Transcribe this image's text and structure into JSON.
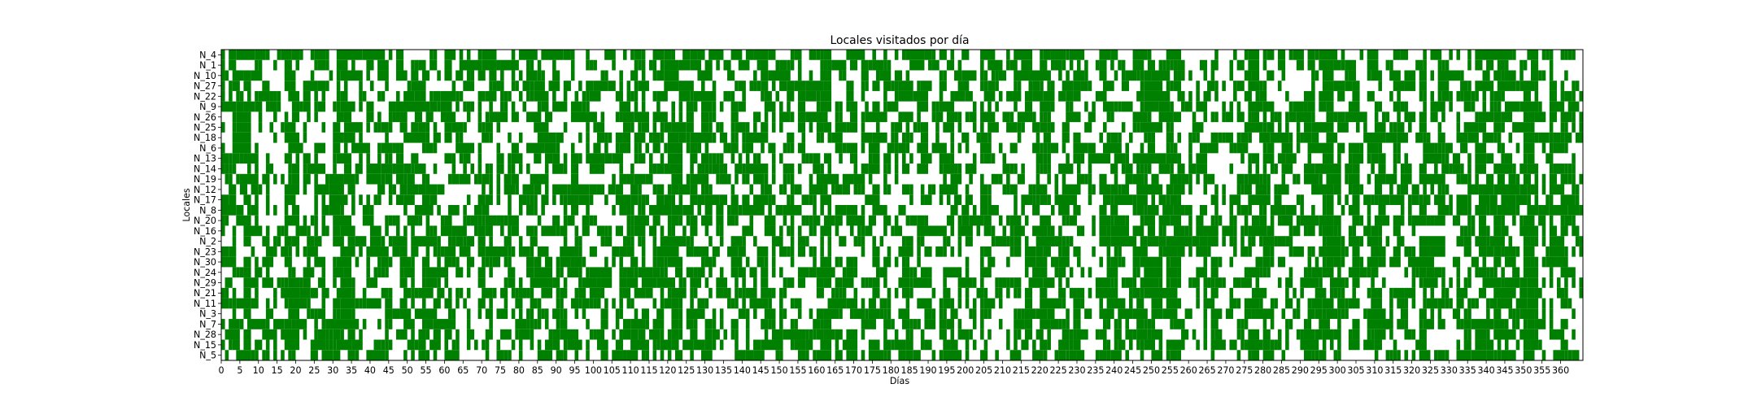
{
  "chart_data": {
    "type": "heatmap",
    "title": "Locales visitados por día",
    "xlabel": "Días",
    "ylabel": "Locales",
    "xlim": [
      0,
      366
    ],
    "x_ticks": [
      0,
      5,
      10,
      15,
      20,
      25,
      30,
      35,
      40,
      45,
      50,
      55,
      60,
      65,
      70,
      75,
      80,
      85,
      90,
      95,
      100,
      105,
      110,
      115,
      120,
      125,
      130,
      135,
      140,
      145,
      150,
      155,
      160,
      165,
      170,
      175,
      180,
      185,
      190,
      195,
      200,
      205,
      210,
      215,
      220,
      225,
      230,
      235,
      240,
      245,
      250,
      255,
      260,
      265,
      270,
      275,
      280,
      285,
      290,
      295,
      300,
      305,
      310,
      315,
      320,
      325,
      330,
      335,
      340,
      345,
      350,
      355,
      360
    ],
    "rows": [
      "N_4",
      "N_1",
      "N_10",
      "N_27",
      "N_22",
      "N_9",
      "N_26",
      "N_25",
      "N_18",
      "N_6",
      "N_13",
      "N_14",
      "N_19",
      "N_12",
      "N_17",
      "N_8",
      "N_20",
      "N_16",
      "N_2",
      "N_23",
      "N_30",
      "N_24",
      "N_29",
      "N_21",
      "N_11",
      "N_3",
      "N_7",
      "N_28",
      "N_15",
      "N_5"
    ],
    "days": 366,
    "visit_color": "#008000",
    "empty_color": "#ffffff",
    "grid": false,
    "density": 0.45
  }
}
